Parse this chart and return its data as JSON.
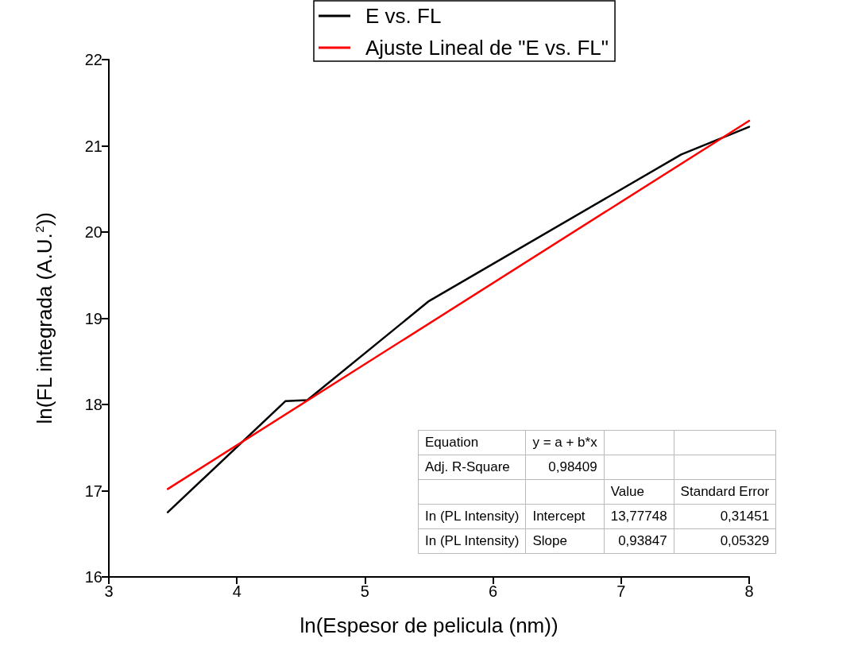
{
  "chart_data": {
    "type": "line",
    "xlabel": "ln(Espesor de pelicula (nm))",
    "ylabel": "ln(FL integrada (A.U.$^{2}$))",
    "xlim": [
      3,
      8
    ],
    "xticks": [
      3,
      4,
      5,
      6,
      7,
      8
    ],
    "ylim": [
      16,
      22
    ],
    "yticks": [
      16,
      17,
      18,
      19,
      20,
      21,
      22
    ],
    "series": [
      {
        "name": "E vs. FL",
        "color": "#000000",
        "x": [
          3.46,
          4.38,
          4.55,
          5.5,
          7.47,
          8.0
        ],
        "values": [
          16.75,
          18.04,
          18.05,
          19.2,
          20.9,
          21.22
        ]
      },
      {
        "name": "Ajuste Lineal de \"E vs. FL\"",
        "color": "#ff0000",
        "x": [
          3.46,
          8.0
        ],
        "values": [
          17.02,
          21.29
        ]
      }
    ],
    "legend": "top",
    "grid": false,
    "marker": "none",
    "line_style": "solid",
    "annotations": [
      "Equation",
      "y = a + b*x",
      null,
      null,
      "Adj. R-Square",
      "0,98409",
      null,
      null,
      null,
      null,
      "Value",
      "Standard Error",
      "In (PL Intensity)",
      "Intercept",
      "13,77748",
      "0,31451",
      "In (PL Intensity)",
      "Slope",
      "0,93847",
      "0,05329"
    ]
  }
}
